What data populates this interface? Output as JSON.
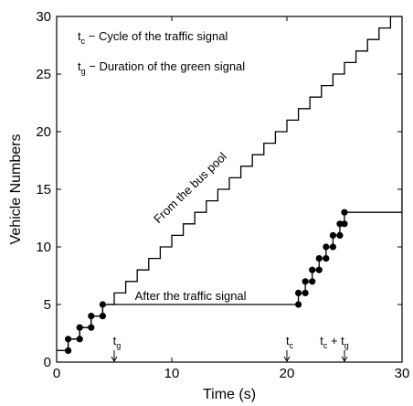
{
  "chart_data": {
    "type": "line",
    "title": "",
    "xlabel": "Time (s)",
    "ylabel": "Vehicle Numbers",
    "xlim": [
      0,
      30
    ],
    "ylim": [
      0,
      30
    ],
    "xticks": [
      "0",
      "10",
      "20",
      "30"
    ],
    "yticks": [
      "0",
      "5",
      "10",
      "15",
      "20",
      "25",
      "30"
    ],
    "grid": false,
    "legend_notes": [
      {
        "symbol": "t",
        "sub": "c",
        "text": " − Cycle of the traffic signal"
      },
      {
        "symbol": "t",
        "sub": "g",
        "text": " − Duration of the green signal"
      }
    ],
    "series": [
      {
        "label": "From the bus pool",
        "style": "step",
        "x": [
          0,
          1,
          2,
          3,
          4,
          5,
          6,
          7,
          8,
          9,
          10,
          11,
          12,
          13,
          14,
          15,
          16,
          17,
          18,
          19,
          20,
          21,
          22,
          23,
          24,
          25,
          26,
          27,
          28,
          29,
          30
        ],
        "y": [
          1,
          2,
          3,
          4,
          5,
          6,
          7,
          8,
          9,
          10,
          11,
          12,
          13,
          14,
          15,
          16,
          17,
          18,
          19,
          20,
          21,
          22,
          23,
          24,
          25,
          26,
          27,
          28,
          29,
          30,
          30
        ]
      },
      {
        "label": "After the traffic signal",
        "style": "step-markers",
        "x": [
          0,
          1,
          2,
          3,
          4,
          5,
          21,
          21.6,
          22.2,
          22.8,
          23.4,
          24,
          24.6,
          25,
          30
        ],
        "y": [
          1,
          2,
          3,
          4,
          5,
          5,
          6,
          7,
          8,
          9,
          10,
          11,
          12,
          13,
          15
        ]
      }
    ],
    "annotations": [
      {
        "symbol": "t",
        "sub": "g",
        "text": "",
        "x": 5
      },
      {
        "symbol": "t",
        "sub": "c",
        "text": "",
        "x": 20
      },
      {
        "symbol": "t",
        "sub": "c",
        "text": " + t",
        "sub2": "g",
        "x": 25
      }
    ]
  }
}
